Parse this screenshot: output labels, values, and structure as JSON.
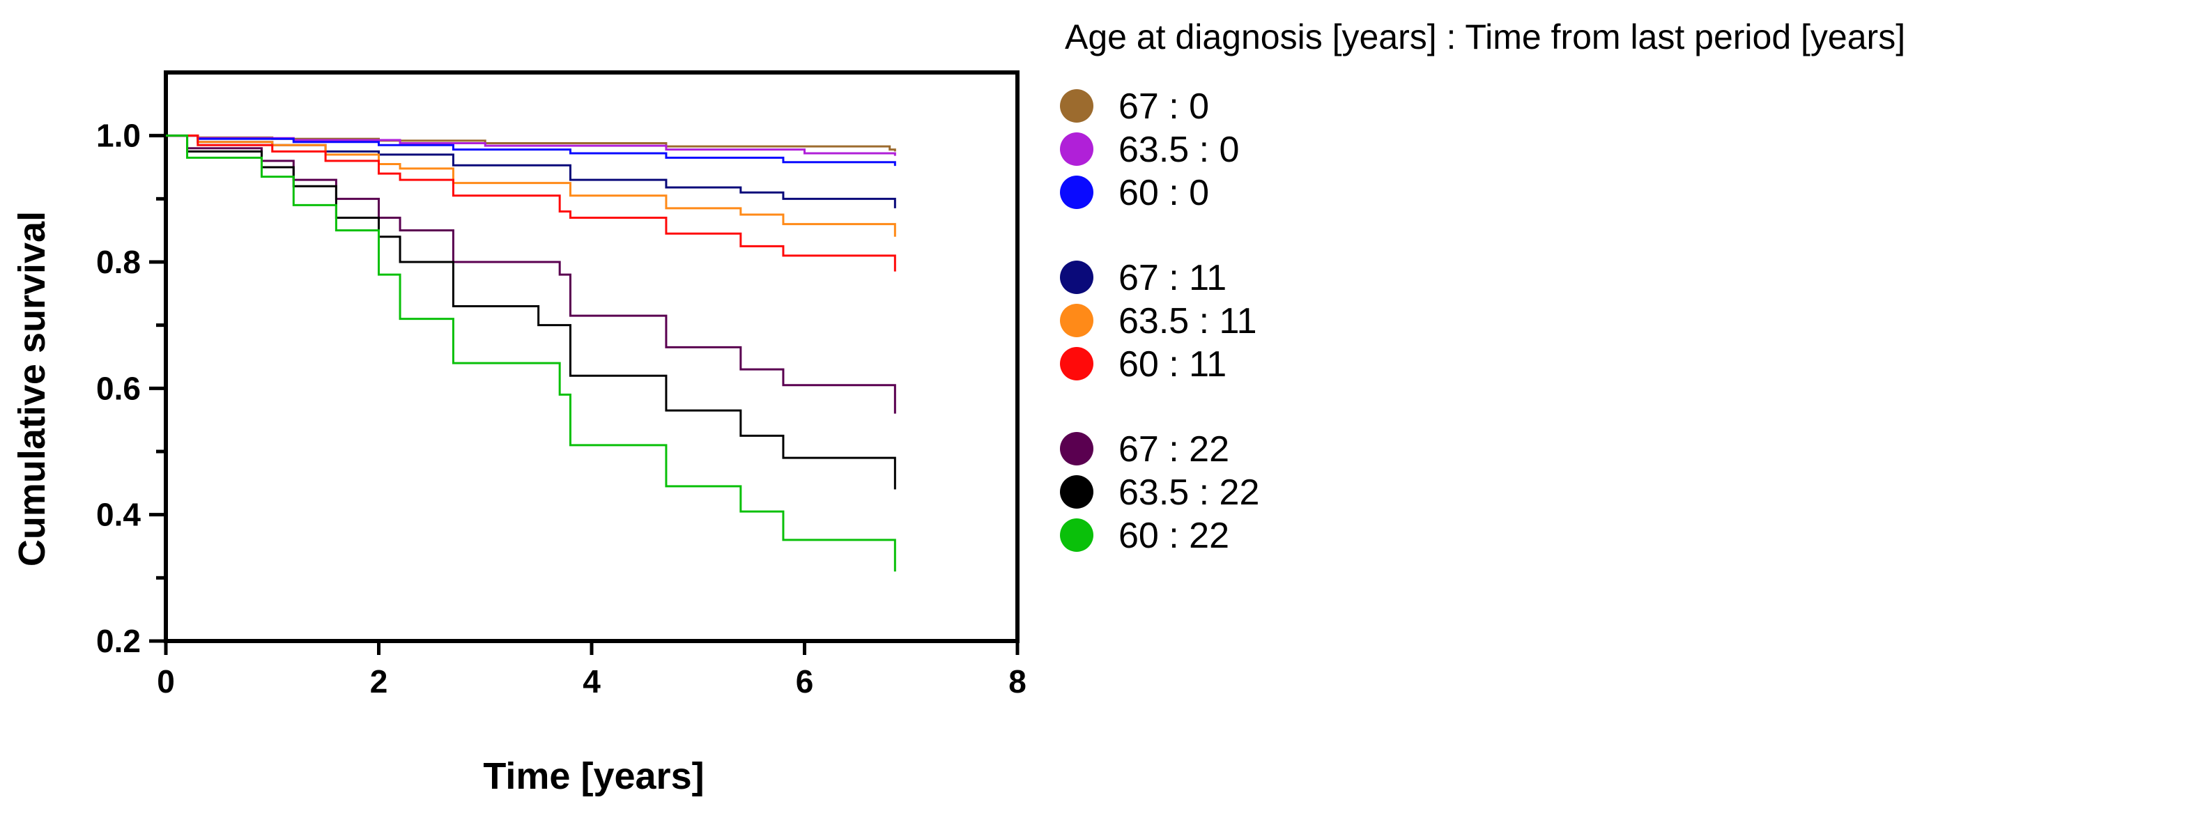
{
  "chart_data": {
    "type": "line",
    "xlabel": "Time [years]",
    "ylabel": "Cumulative survival",
    "xlim": [
      0,
      8
    ],
    "ylim": [
      0.2,
      1.1
    ],
    "x_ticks": [
      0,
      2,
      4,
      6,
      8
    ],
    "x_tick_labels": [
      "0",
      "2",
      "4",
      "6",
      "8"
    ],
    "y_ticks": [
      0.2,
      0.4,
      0.6,
      0.8,
      1.0
    ],
    "y_tick_labels": [
      "0.2",
      "0.4",
      "0.6",
      "0.8",
      "1.0"
    ],
    "grid": false,
    "legend": {
      "title": "Age at diagnosis [years] : Time from last period [years]",
      "position": "right"
    },
    "series": [
      {
        "name": "67 : 0",
        "color": "#9c6b2e",
        "x": [
          0,
          0.3,
          1.0,
          2.0,
          3.0,
          4.7,
          6.8,
          6.85
        ],
        "y": [
          1.0,
          0.997,
          0.995,
          0.992,
          0.988,
          0.983,
          0.978,
          0.975
        ]
      },
      {
        "name": "63.5 : 0",
        "color": "#b020d8",
        "x": [
          0,
          0.3,
          1.2,
          2.2,
          3.0,
          4.7,
          6.0,
          6.85
        ],
        "y": [
          1.0,
          0.996,
          0.993,
          0.988,
          0.984,
          0.978,
          0.972,
          0.968
        ]
      },
      {
        "name": "60 : 0",
        "color": "#0a0aff",
        "x": [
          0,
          0.3,
          1.2,
          2.0,
          2.7,
          3.8,
          4.7,
          5.8,
          6.85
        ],
        "y": [
          1.0,
          0.995,
          0.99,
          0.985,
          0.978,
          0.972,
          0.965,
          0.958,
          0.952
        ]
      },
      {
        "name": "67 : 11",
        "color": "#0a0a7a",
        "x": [
          0,
          0.3,
          1.0,
          1.5,
          2.0,
          2.7,
          3.8,
          4.7,
          5.4,
          5.8,
          6.85
        ],
        "y": [
          1.0,
          0.99,
          0.985,
          0.975,
          0.97,
          0.953,
          0.93,
          0.918,
          0.91,
          0.9,
          0.885
        ]
      },
      {
        "name": "63.5 : 11",
        "color": "#ff8a18",
        "x": [
          0,
          0.3,
          1.0,
          1.5,
          2.0,
          2.2,
          2.7,
          3.8,
          4.7,
          5.4,
          5.8,
          6.85
        ],
        "y": [
          1.0,
          0.99,
          0.985,
          0.97,
          0.955,
          0.948,
          0.925,
          0.905,
          0.885,
          0.875,
          0.86,
          0.84
        ]
      },
      {
        "name": "60 : 11",
        "color": "#ff0a0a",
        "x": [
          0,
          0.3,
          1.0,
          1.5,
          2.0,
          2.2,
          2.7,
          3.7,
          3.8,
          4.7,
          5.4,
          5.8,
          6.85
        ],
        "y": [
          1.0,
          0.985,
          0.975,
          0.96,
          0.94,
          0.93,
          0.905,
          0.88,
          0.87,
          0.845,
          0.825,
          0.81,
          0.785
        ]
      },
      {
        "name": "67 : 22",
        "color": "#5a0050",
        "x": [
          0,
          0.2,
          0.9,
          1.2,
          1.6,
          2.0,
          2.2,
          2.7,
          3.0,
          3.7,
          3.8,
          4.7,
          5.4,
          5.8,
          6.85
        ],
        "y": [
          1.0,
          0.98,
          0.96,
          0.93,
          0.9,
          0.87,
          0.85,
          0.8,
          0.8,
          0.78,
          0.715,
          0.665,
          0.63,
          0.605,
          0.56
        ]
      },
      {
        "name": "63.5 : 22",
        "color": "#000000",
        "x": [
          0,
          0.2,
          0.9,
          1.2,
          1.6,
          2.0,
          2.2,
          2.7,
          3.5,
          3.8,
          4.7,
          5.4,
          5.8,
          6.85
        ],
        "y": [
          1.0,
          0.975,
          0.95,
          0.92,
          0.87,
          0.84,
          0.8,
          0.73,
          0.7,
          0.62,
          0.565,
          0.525,
          0.49,
          0.44
        ]
      },
      {
        "name": "60 : 22",
        "color": "#0ac00a",
        "x": [
          0,
          0.2,
          0.9,
          1.2,
          1.6,
          2.0,
          2.2,
          2.7,
          3.7,
          3.8,
          4.7,
          5.4,
          5.8,
          6.85
        ],
        "y": [
          1.0,
          0.965,
          0.935,
          0.89,
          0.85,
          0.78,
          0.71,
          0.64,
          0.59,
          0.51,
          0.445,
          0.405,
          0.36,
          0.31
        ]
      }
    ],
    "legend_groups": [
      [
        0,
        1,
        2
      ],
      [
        3,
        4,
        5
      ],
      [
        6,
        7,
        8
      ]
    ]
  }
}
